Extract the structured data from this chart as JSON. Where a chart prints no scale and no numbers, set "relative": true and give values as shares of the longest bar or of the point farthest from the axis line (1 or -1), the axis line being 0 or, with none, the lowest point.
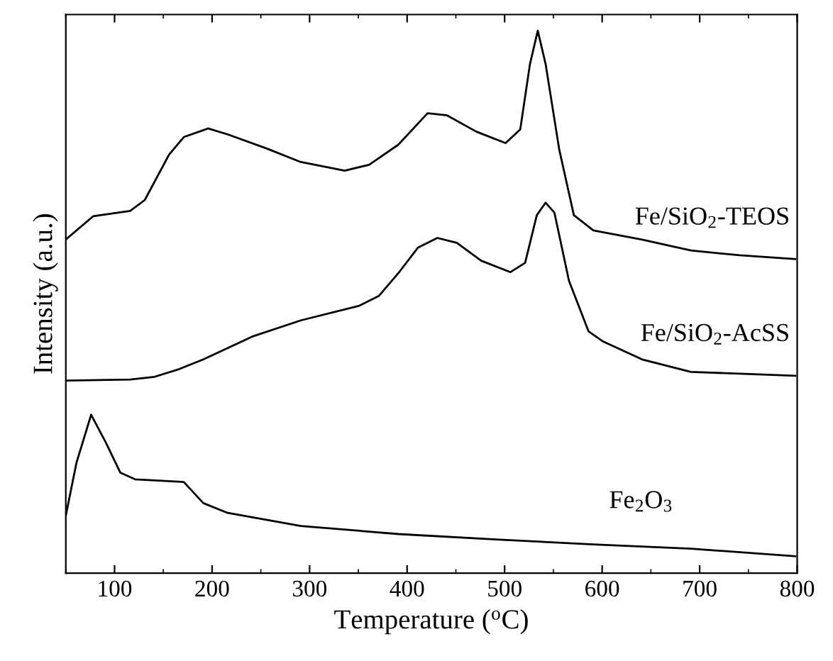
{
  "chart_data": {
    "type": "line",
    "relative": true,
    "xlabel": "Temperature ($^{o}$C)",
    "ylabel": "Intensity (a.u.)",
    "xlim": [
      50,
      800
    ],
    "xticks": [
      100,
      200,
      300,
      400,
      500,
      600,
      700,
      800
    ],
    "tick_labels": "x",
    "grid": false,
    "legend": false,
    "marker": "none",
    "line_style": "solid",
    "series": [
      {
        "name": "Fe/SiO$_{2}$-TEOS",
        "color": "#000000",
        "x": [
          50,
          78,
          116,
          131,
          156,
          171,
          196,
          216,
          256,
          291,
          336,
          361,
          391,
          421,
          441,
          471,
          501,
          516,
          526,
          534,
          542,
          556,
          571,
          591,
          641,
          691,
          741,
          798
        ],
        "values": [
          0.615,
          0.658,
          0.668,
          0.688,
          0.772,
          0.804,
          0.82,
          0.809,
          0.783,
          0.758,
          0.742,
          0.753,
          0.79,
          0.848,
          0.844,
          0.814,
          0.793,
          0.818,
          0.939,
          1.0,
          0.939,
          0.781,
          0.66,
          0.632,
          0.615,
          0.595,
          0.586,
          0.579
        ]
      },
      {
        "name": "Fe/SiO$_{2}$-AcSS",
        "color": "#000000",
        "x": [
          51,
          116,
          141,
          166,
          191,
          241,
          291,
          351,
          371,
          391,
          411,
          431,
          451,
          476,
          506,
          521,
          533,
          542,
          551,
          566,
          586,
          601,
          641,
          691,
          798
        ],
        "values": [
          0.355,
          0.357,
          0.362,
          0.376,
          0.394,
          0.436,
          0.466,
          0.493,
          0.511,
          0.553,
          0.6,
          0.618,
          0.609,
          0.576,
          0.555,
          0.572,
          0.66,
          0.683,
          0.665,
          0.539,
          0.446,
          0.427,
          0.394,
          0.371,
          0.364
        ]
      },
      {
        "name": "Fe$_{2}$O$_{3}$",
        "color": "#000000",
        "x": [
          50,
          61,
          76,
          91,
          106,
          121,
          171,
          191,
          216,
          291,
          391,
          491,
          591,
          691,
          798
        ],
        "values": [
          0.106,
          0.204,
          0.292,
          0.241,
          0.185,
          0.173,
          0.168,
          0.129,
          0.111,
          0.087,
          0.072,
          0.062,
          0.053,
          0.045,
          0.031
        ]
      }
    ]
  }
}
